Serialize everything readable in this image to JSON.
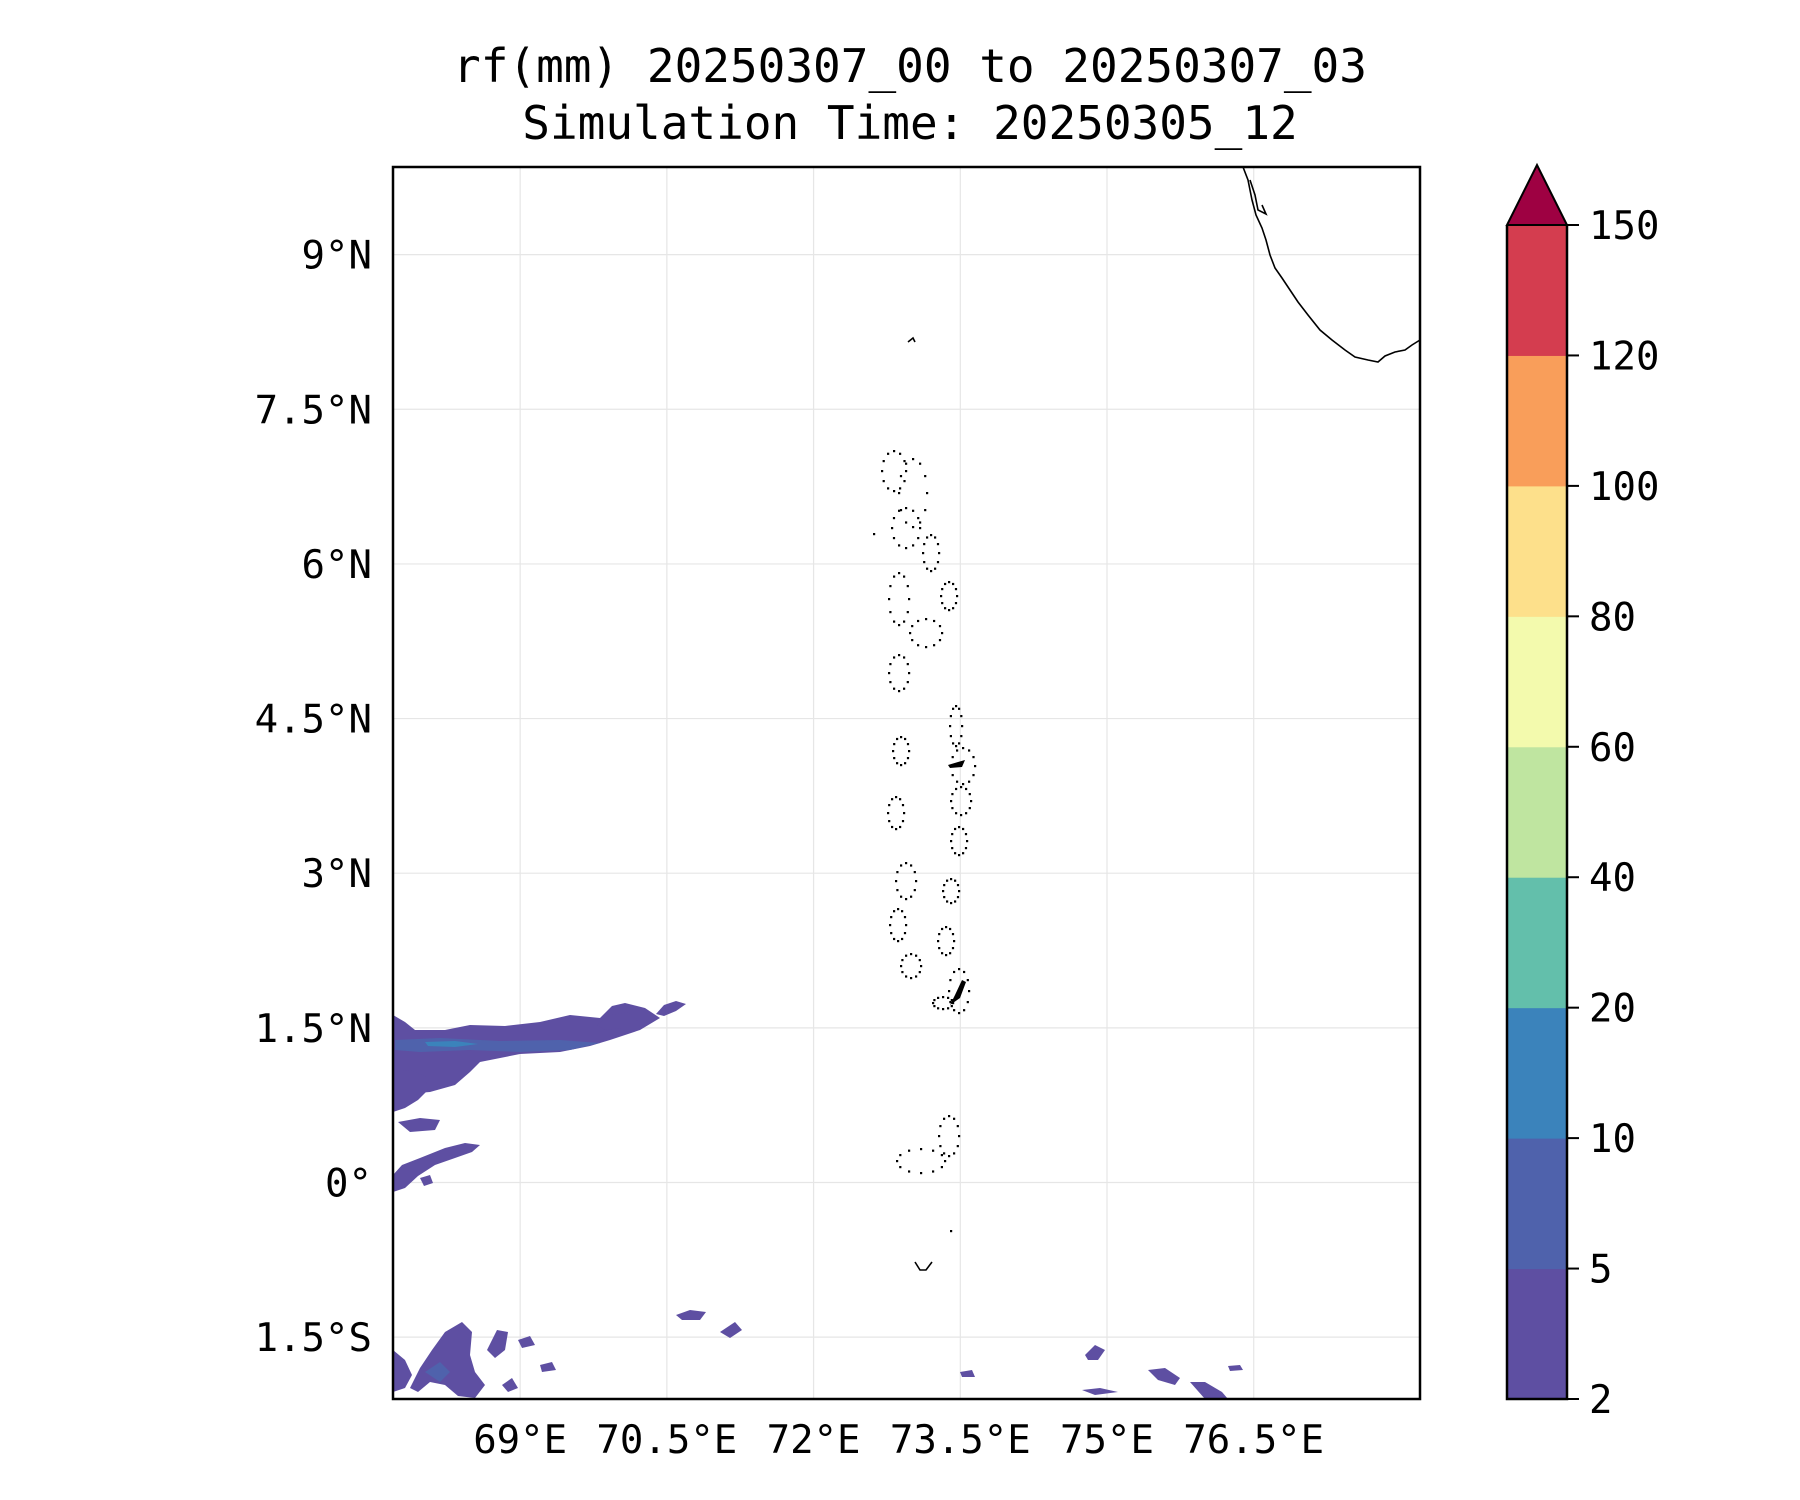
{
  "title": {
    "line1": "rf(mm) 20250307_00 to 20250307_03",
    "line2": "Simulation Time: 20250305_12"
  },
  "map": {
    "lon_range": [
      67.7,
      78.2
    ],
    "lat_range": [
      -2.1,
      9.85
    ],
    "lon_ticks": [
      {
        "value": 69.0,
        "label": "69°E"
      },
      {
        "value": 70.5,
        "label": "70.5°E"
      },
      {
        "value": 72.0,
        "label": "72°E"
      },
      {
        "value": 73.5,
        "label": "73.5°E"
      },
      {
        "value": 75.0,
        "label": "75°E"
      },
      {
        "value": 76.5,
        "label": "76.5°E"
      }
    ],
    "lat_ticks": [
      {
        "value": 9.0,
        "label": "9°N"
      },
      {
        "value": 7.5,
        "label": "7.5°N"
      },
      {
        "value": 6.0,
        "label": "6°N"
      },
      {
        "value": 4.5,
        "label": "4.5°N"
      },
      {
        "value": 3.0,
        "label": "3°N"
      },
      {
        "value": 1.5,
        "label": "1.5°N"
      },
      {
        "value": 0.0,
        "label": "0°"
      },
      {
        "value": -1.5,
        "label": "1.5°S"
      }
    ],
    "grid": true
  },
  "colorbar": {
    "extend": "max",
    "extend_color": "#9e0142",
    "levels": [
      {
        "value": 2,
        "label": "2"
      },
      {
        "value": 5,
        "label": "5"
      },
      {
        "value": 10,
        "label": "10"
      },
      {
        "value": 20,
        "label": "20"
      },
      {
        "value": 40,
        "label": "40"
      },
      {
        "value": 60,
        "label": "60"
      },
      {
        "value": 80,
        "label": "80"
      },
      {
        "value": 100,
        "label": "100"
      },
      {
        "value": 120,
        "label": "120"
      },
      {
        "value": 150,
        "label": "150"
      }
    ],
    "colors": [
      "#5e4fa2",
      "#4f62ac",
      "#3b83bb",
      "#63bfab",
      "#bfe5a0",
      "#f3faad",
      "#fde08b",
      "#f99e5a",
      "#d43d4f"
    ]
  }
}
